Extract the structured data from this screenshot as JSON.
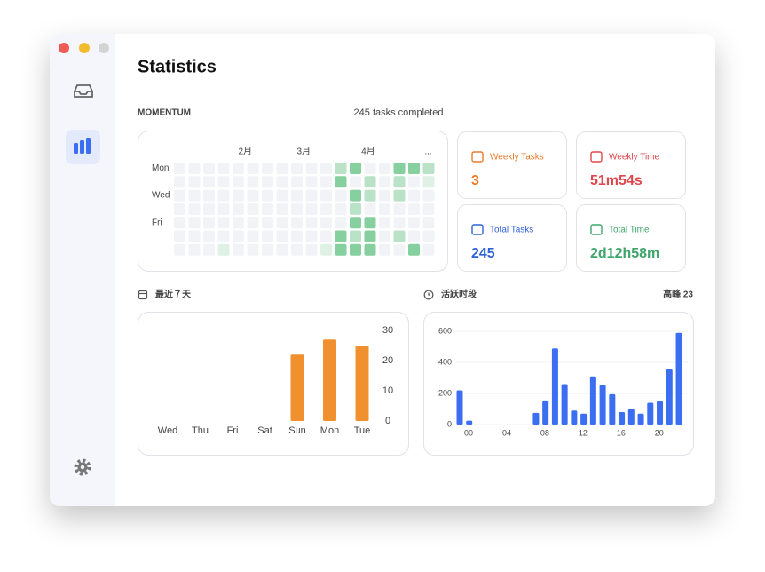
{
  "header": {
    "title": "Statistics"
  },
  "momentum": {
    "label": "MOMENTUM",
    "summary": "245 tasks completed",
    "months": [
      "2月",
      "3月",
      "4月",
      "..."
    ],
    "weekdays": [
      "Mon",
      null,
      "Wed",
      null,
      "Fri",
      null,
      null
    ],
    "level_colors": [
      "#f1f3f6",
      "#dff1e5",
      "#b9e2c7",
      "#86cf9e",
      "#5cbb7e"
    ],
    "levels": [
      [
        0,
        0,
        0,
        0,
        0,
        0,
        0,
        0,
        0,
        0,
        0,
        2,
        3,
        0,
        0,
        3,
        3,
        2
      ],
      [
        0,
        0,
        0,
        0,
        0,
        0,
        0,
        0,
        0,
        0,
        0,
        3,
        0,
        2,
        0,
        2,
        0,
        1
      ],
      [
        0,
        0,
        0,
        0,
        0,
        0,
        0,
        0,
        0,
        0,
        0,
        0,
        3,
        2,
        0,
        2,
        0,
        0
      ],
      [
        0,
        0,
        0,
        0,
        0,
        0,
        0,
        0,
        0,
        0,
        0,
        0,
        2,
        0,
        0,
        0,
        0,
        0
      ],
      [
        0,
        0,
        0,
        0,
        0,
        0,
        0,
        0,
        0,
        0,
        0,
        0,
        3,
        3,
        0,
        0,
        0,
        0
      ],
      [
        0,
        0,
        0,
        0,
        0,
        0,
        0,
        0,
        0,
        0,
        0,
        3,
        2,
        3,
        0,
        2,
        0,
        0
      ],
      [
        0,
        0,
        0,
        1,
        0,
        0,
        0,
        0,
        0,
        0,
        1,
        3,
        3,
        3,
        0,
        0,
        3,
        0
      ]
    ]
  },
  "cards": [
    {
      "label": "Weekly Tasks",
      "value": 3,
      "color": "#ec7a2a"
    },
    {
      "label": "Weekly Time",
      "value": "51m54s",
      "color": "#e0474c"
    },
    {
      "label": "Total Tasks",
      "value": 245,
      "color": "#2f62d8"
    },
    {
      "label": "Total Time",
      "value": "2d12h58m",
      "color": "#3fa56b"
    }
  ],
  "recent_chart": {
    "type": "bar",
    "title": "最近７天",
    "categories": [
      "Wed",
      "Thu",
      "Fri",
      "Sat",
      "Sun",
      "Mon",
      "Tue"
    ],
    "values": [
      0,
      0,
      0,
      0,
      22,
      27,
      25
    ],
    "color": "#f0902f",
    "ylim": [
      0,
      30
    ],
    "yticks": [
      0,
      10,
      20,
      30
    ]
  },
  "hourly_chart": {
    "type": "bar",
    "title": "活跃时段",
    "annotation": "高峰 23",
    "categories": [
      "00",
      null,
      null,
      null,
      "04",
      null,
      null,
      null,
      "08",
      null,
      null,
      null,
      "12",
      null,
      null,
      null,
      "16",
      null,
      null,
      null,
      "20",
      null,
      null,
      null
    ],
    "values": [
      220,
      25,
      0,
      0,
      0,
      0,
      0,
      0,
      75,
      155,
      490,
      260,
      90,
      70,
      310,
      255,
      195,
      80,
      100,
      70,
      140,
      150,
      355,
      590
    ],
    "color": "#3b6ef0",
    "ylim": [
      0,
      600
    ],
    "yticks": [
      0,
      200,
      400,
      600
    ],
    "grid": true
  }
}
